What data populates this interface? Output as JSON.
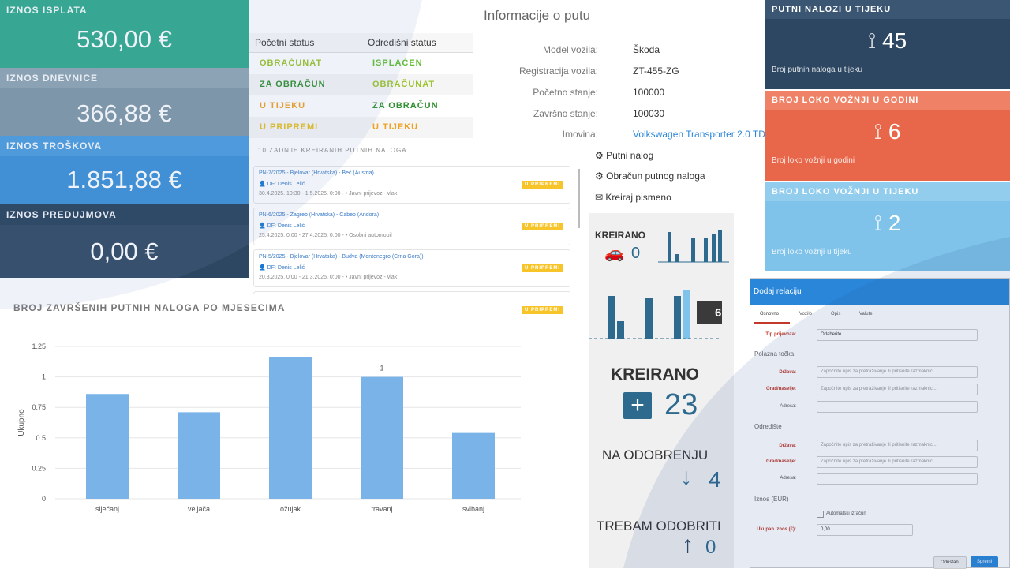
{
  "tiles": [
    {
      "label": "IZNOS ISPLATA",
      "amount": "530,00 €",
      "color": "#2eaa8e"
    },
    {
      "label": "IZNOS DNEVNICE",
      "amount": "366,88 €",
      "color": "#7f97a6"
    },
    {
      "label": "IZNOS TROŠKOVA",
      "amount": "1.851,88 €",
      "color": "#3a8fd8"
    },
    {
      "label": "IZNOS PREDUJMOVA",
      "amount": "0,00 €",
      "color": "#2d4762"
    }
  ],
  "status_table": {
    "headers": [
      "Početni status",
      "Odredišni status"
    ],
    "rows": [
      [
        "OBRAČUNAT",
        "ISPLAĆEN"
      ],
      [
        "ZA OBRAČUN",
        "OBRAČUNAT"
      ],
      [
        "U TIJEKU",
        "ZA OBRAČUN"
      ],
      [
        "U PRIPREMI",
        "U TIJEKU"
      ]
    ]
  },
  "recent": {
    "header": "10 ZADNJE KREIRANIH PUTNIH NALOGA",
    "items": [
      {
        "title": "PN-7/2025 - Bjelovar (Hrvatska) - Beč (Austria)",
        "user": "DF: Denis Lelić",
        "dates": "30.4.2025. 10:30 - 1.5.2025. 0:00 -",
        "transport": "Javni prijevoz - vlak",
        "status": "U PRIPREMI"
      },
      {
        "title": "PN-6/2025 - Zagreb (Hrvatska) - Cabeo (Andora)",
        "user": "DF: Denis Lelić",
        "dates": "25.4.2025. 0:00 - 27.4.2025. 0:00 -",
        "transport": "Osobni automobil",
        "status": "U PRIPREMI"
      },
      {
        "title": "PN-5/2025 - Bjelovar (Hrvatska) - Budva (Montenegro (Crna Gora))",
        "user": "DF: Denis Lelić",
        "dates": "20.3.2025. 0:00 - 21.3.2025. 0:00 -",
        "transport": "Javni prijevoz - vlak",
        "status": "U PRIPREMI"
      },
      {
        "title": "",
        "user": "",
        "dates": "",
        "transport": "",
        "status": "U PRIPREMI"
      }
    ]
  },
  "info": {
    "title": "Informacije o putu",
    "rows": [
      {
        "k": "Model vozila:",
        "v": "Škoda"
      },
      {
        "k": "Registracija vozila:",
        "v": "ZT-455-ZG"
      },
      {
        "k": "Početno stanje:",
        "v": "100000"
      },
      {
        "k": "Završno stanje:",
        "v": "100030"
      },
      {
        "k": "Imovina:",
        "v": "Volkswagen Transporter 2.0 TDI"
      }
    ]
  },
  "actions": [
    "Putni nalog",
    "Obračun putnog naloga",
    "Kreiraj pismeno"
  ],
  "right_tiles": [
    {
      "label": "PUTNI NALOZI U TIJEKU",
      "num": "45",
      "sub": "Broj putnih naloga u tijeku",
      "color": "#2d4762"
    },
    {
      "label": "BROJ LOKO VOŽNJI U GODINI",
      "num": "6",
      "sub": "Broj loko vožnji u godini",
      "color": "#e8674a"
    },
    {
      "label": "BROJ LOKO VOŽNJI U TIJEKU",
      "num": "2",
      "sub": "Broj loko vožnji u tijeku",
      "color": "#7fc3ea"
    }
  ],
  "chart_title": "BROJ ZAVRŠENIH PUTNIH NALOGA PO MJESECIMA",
  "chart_data": {
    "type": "bar",
    "categories": [
      "siječanj",
      "veljača",
      "ožujak",
      "travanj",
      "svibanj"
    ],
    "values": [
      0.86,
      0.71,
      1.16,
      1.0,
      0.54
    ],
    "data_labels": [
      "",
      "",
      "",
      "1",
      ""
    ],
    "ylabel": "Ukupno",
    "ylim": [
      0,
      1.25
    ],
    "yticks": [
      "0",
      "0.25",
      "0.5",
      "0.75",
      "1",
      "1.25"
    ],
    "color": "#7ab3e8"
  },
  "stats": {
    "kreirano_small_label": "KREIRANO",
    "kreirano_small_value": "0",
    "spark_badge": "6",
    "kreirano_label": "KREIRANO",
    "kreirano_value": "23",
    "odobrenje_label": "NA ODOBRENJU",
    "odobrenje_value": "4",
    "trebam_label": "TREBAM ODOBRITI",
    "trebam_value": "0"
  },
  "dialog": {
    "title": "Dodaj relaciju",
    "tabs": [
      "Osnovno",
      "Vozilo",
      "Opis",
      "Valute"
    ],
    "tip_label": "Tip prijevoza:",
    "tip_value": "Odaberite...",
    "polazna": "Polazna točka",
    "drzava_label": "Država:",
    "grad_label": "Grad/naselje:",
    "adresa_label": "Adresa:",
    "placeholder": "Započnite upis za pretraživanje ili pritisnite razmaknic...",
    "odrediste": "Odredište",
    "iznos": "Iznos (EUR)",
    "auto_label": "Automatski izračun",
    "ukupan_label": "Ukupan iznos (€):",
    "ukupan_value": "0,00",
    "cancel": "Odustani",
    "save": "Spremi"
  }
}
